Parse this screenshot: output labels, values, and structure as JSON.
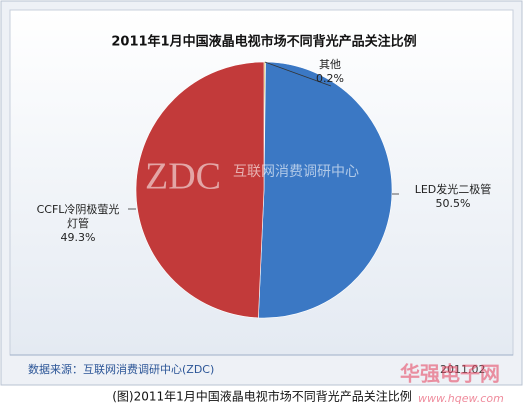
{
  "chart_data": {
    "type": "pie",
    "title": "2011年1月中国液晶电视市场不同背光产品关注比例",
    "categories": [
      "其他",
      "LED发光二极管",
      "CCFL冷阴极萤光灯管"
    ],
    "values": [
      0.2,
      50.5,
      49.3
    ],
    "value_labels": [
      "0.2%",
      "50.5%",
      "49.3%"
    ],
    "colors": [
      "#d8b54c",
      "#3b78c4",
      "#c23a3a"
    ],
    "watermark": {
      "logo": "ZDC",
      "text": "互联网消费调研中心"
    },
    "source": "数据来源：互联网消费调研中心(ZDC)",
    "date": "2011.02"
  },
  "caption": "(图)2011年1月中国液晶电视市场不同背光产品关注比例",
  "site_watermark": {
    "name": "华强电子网",
    "url": "www.hqew.com"
  }
}
